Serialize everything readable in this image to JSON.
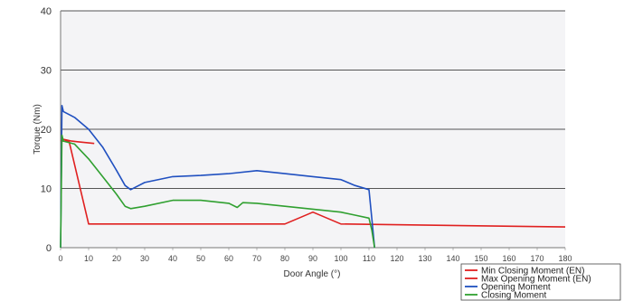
{
  "chart_data": {
    "type": "line",
    "title": "",
    "xlabel": "Door Angle (°)",
    "ylabel": "Torque (Nm)",
    "xlim": [
      0,
      180
    ],
    "ylim": [
      0,
      40
    ],
    "xticks": [
      0,
      10,
      20,
      30,
      40,
      50,
      60,
      70,
      80,
      90,
      100,
      110,
      120,
      130,
      140,
      150,
      160,
      170,
      180
    ],
    "yticks": [
      0,
      10,
      20,
      30,
      40
    ],
    "grid": "horizontal",
    "legend": "bottom-right",
    "series": [
      {
        "name": "Min Closing Moment (EN)",
        "color": "#e02020",
        "x": [
          0,
          3,
          10,
          80,
          90,
          100,
          180
        ],
        "y": [
          18,
          18,
          4,
          4,
          6,
          4,
          3.5
        ]
      },
      {
        "name": "Max Opening Moment (EN)",
        "color": "#e02020",
        "x": [
          0,
          1,
          2,
          4,
          6,
          8,
          10,
          12
        ],
        "y": [
          18,
          18.3,
          18.2,
          18,
          17.9,
          17.8,
          17.7,
          17.6
        ]
      },
      {
        "name": "Opening Moment",
        "color": "#2050c0",
        "x": [
          0,
          0.5,
          1,
          5,
          10,
          15,
          20,
          23,
          25,
          30,
          40,
          50,
          60,
          70,
          80,
          90,
          100,
          105,
          110,
          111,
          112
        ],
        "y": [
          0,
          24,
          23,
          22,
          20,
          17,
          13,
          10.5,
          9.8,
          11,
          12,
          12.2,
          12.5,
          13,
          12.5,
          12,
          11.5,
          10.5,
          9.8,
          5,
          0
        ]
      },
      {
        "name": "Closing Moment",
        "color": "#30a030",
        "x": [
          0,
          0.5,
          1,
          5,
          10,
          15,
          20,
          23,
          25,
          30,
          40,
          50,
          60,
          63,
          65,
          70,
          80,
          90,
          100,
          105,
          110,
          111,
          112
        ],
        "y": [
          0,
          19,
          18,
          17.5,
          15,
          12,
          9,
          7,
          6.6,
          7,
          8,
          8,
          7.5,
          6.8,
          7.6,
          7.5,
          7,
          6.5,
          6,
          5.5,
          5,
          3,
          0
        ]
      }
    ]
  }
}
